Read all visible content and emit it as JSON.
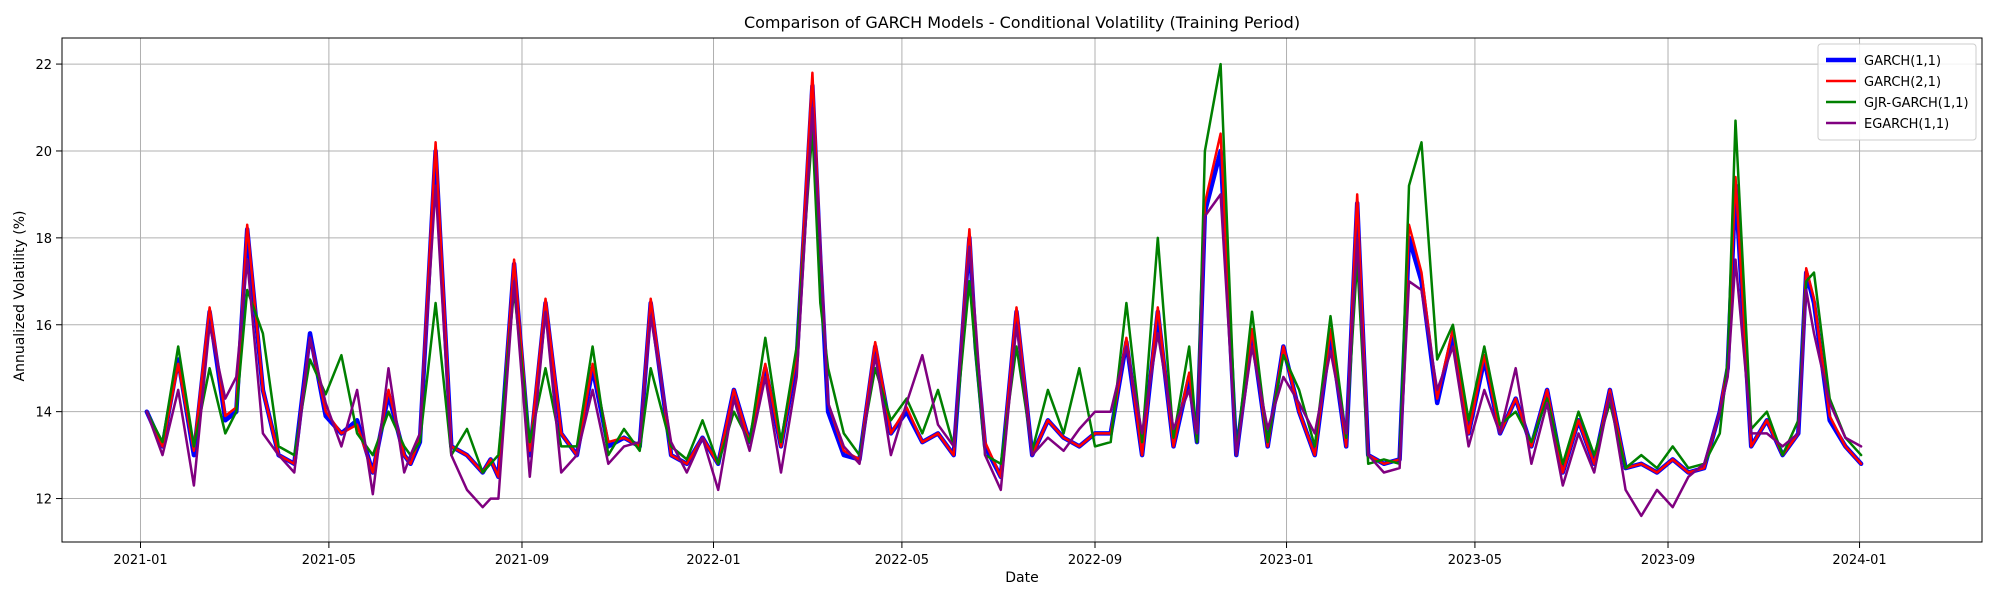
{
  "chart_data": {
    "type": "line",
    "title": "Comparison of GARCH Models - Conditional Volatility (Training Period)",
    "xlabel": "Date",
    "ylabel": "Annualized Volatility (%)",
    "x_axis": {
      "scale": "date",
      "range": [
        "2020-11-12",
        "2024-03-19"
      ],
      "ticks": [
        "2021-01",
        "2021-05",
        "2021-09",
        "2022-01",
        "2022-05",
        "2022-09",
        "2023-01",
        "2023-05",
        "2023-09",
        "2024-01"
      ],
      "tick_dates": [
        "2021-01-01",
        "2021-05-01",
        "2021-09-01",
        "2022-01-01",
        "2022-05-01",
        "2022-09-01",
        "2023-01-01",
        "2023-05-01",
        "2023-09-01",
        "2024-01-01"
      ]
    },
    "y_axis": {
      "range": [
        11.0,
        22.6
      ],
      "ticks": [
        12,
        14,
        16,
        18,
        20,
        22
      ]
    },
    "grid": true,
    "legend": {
      "position": "top-right"
    },
    "x": [
      "2021-01-05",
      "2021-01-15",
      "2021-01-25",
      "2021-02-04",
      "2021-02-14",
      "2021-02-24",
      "2021-03-03",
      "2021-03-10",
      "2021-03-20",
      "2021-03-30",
      "2021-04-09",
      "2021-04-19",
      "2021-04-29",
      "2021-05-09",
      "2021-05-19",
      "2021-05-29",
      "2021-06-08",
      "2021-06-18",
      "2021-06-22",
      "2021-06-28",
      "2021-07-08",
      "2021-07-18",
      "2021-07-28",
      "2021-08-07",
      "2021-08-12",
      "2021-08-17",
      "2021-08-27",
      "2021-09-06",
      "2021-09-16",
      "2021-09-26",
      "2021-10-06",
      "2021-10-16",
      "2021-10-26",
      "2021-11-05",
      "2021-11-15",
      "2021-11-22",
      "2021-12-05",
      "2021-12-15",
      "2021-12-25",
      "2022-01-04",
      "2022-01-14",
      "2022-01-24",
      "2022-02-03",
      "2022-02-13",
      "2022-02-23",
      "2022-03-05",
      "2022-03-10",
      "2022-03-15",
      "2022-03-25",
      "2022-04-04",
      "2022-04-14",
      "2022-04-24",
      "2022-05-04",
      "2022-05-14",
      "2022-05-24",
      "2022-06-03",
      "2022-06-13",
      "2022-06-17",
      "2022-06-23",
      "2022-07-03",
      "2022-07-13",
      "2022-07-23",
      "2022-08-02",
      "2022-08-12",
      "2022-08-22",
      "2022-09-01",
      "2022-09-11",
      "2022-09-21",
      "2022-10-01",
      "2022-10-11",
      "2022-10-21",
      "2022-10-31",
      "2022-11-05",
      "2022-11-10",
      "2022-11-20",
      "2022-11-30",
      "2022-12-10",
      "2022-12-20",
      "2022-12-30",
      "2023-01-09",
      "2023-01-19",
      "2023-01-29",
      "2023-02-08",
      "2023-02-15",
      "2023-02-22",
      "2023-03-04",
      "2023-03-14",
      "2023-03-20",
      "2023-03-28",
      "2023-04-07",
      "2023-04-17",
      "2023-04-27",
      "2023-05-07",
      "2023-05-17",
      "2023-05-27",
      "2023-06-06",
      "2023-06-16",
      "2023-06-26",
      "2023-07-06",
      "2023-07-16",
      "2023-07-26",
      "2023-08-05",
      "2023-08-15",
      "2023-08-25",
      "2023-09-04",
      "2023-09-14",
      "2023-09-24",
      "2023-10-04",
      "2023-10-09",
      "2023-10-14",
      "2023-10-24",
      "2023-11-03",
      "2023-11-13",
      "2023-11-23",
      "2023-11-28",
      "2023-12-03",
      "2023-12-13",
      "2023-12-23",
      "2024-01-02"
    ],
    "series": [
      {
        "name": "GARCH(1,1)",
        "color": "#0000ff",
        "width": 4.5,
        "values": [
          14.0,
          13.2,
          15.2,
          13.0,
          16.3,
          13.8,
          14.0,
          18.2,
          14.5,
          13.0,
          12.8,
          15.8,
          13.9,
          13.5,
          13.8,
          12.6,
          14.4,
          13.0,
          12.8,
          13.3,
          20.0,
          13.2,
          13.0,
          12.6,
          12.9,
          12.5,
          17.4,
          13.0,
          16.5,
          13.5,
          13.0,
          15.0,
          13.2,
          13.4,
          13.2,
          16.5,
          13.0,
          12.8,
          13.4,
          12.8,
          14.5,
          13.3,
          15.0,
          13.2,
          15.2,
          21.5,
          17.5,
          14.0,
          13.0,
          12.9,
          15.5,
          13.5,
          14.0,
          13.3,
          13.5,
          13.0,
          18.0,
          15.5,
          13.2,
          12.5,
          16.3,
          13.0,
          13.8,
          13.4,
          13.2,
          13.5,
          13.5,
          15.6,
          13.0,
          16.3,
          13.2,
          14.8,
          13.3,
          18.6,
          20.0,
          13.0,
          15.8,
          13.2,
          15.5,
          14.0,
          13.0,
          15.8,
          13.2,
          18.8,
          13.0,
          12.8,
          12.9,
          18.0,
          17.0,
          14.2,
          15.8,
          13.5,
          15.2,
          13.5,
          14.3,
          13.2,
          14.5,
          12.6,
          13.8,
          12.8,
          14.5,
          12.7,
          12.8,
          12.6,
          12.9,
          12.6,
          12.7,
          14.0,
          15.0,
          19.2,
          13.2,
          13.8,
          13.0,
          13.5,
          17.2,
          16.5,
          13.8,
          13.2,
          12.8
        ]
      },
      {
        "name": "GARCH(2,1)",
        "color": "#ff0000",
        "width": 2.5,
        "values": [
          14.0,
          13.2,
          15.1,
          13.1,
          16.4,
          13.9,
          14.1,
          18.3,
          14.5,
          13.0,
          12.8,
          15.7,
          14.0,
          13.5,
          13.7,
          12.6,
          14.5,
          13.0,
          12.8,
          13.4,
          20.2,
          13.2,
          13.0,
          12.6,
          12.9,
          12.5,
          17.5,
          13.1,
          16.6,
          13.5,
          13.0,
          15.1,
          13.3,
          13.4,
          13.2,
          16.6,
          13.0,
          12.8,
          13.4,
          12.8,
          14.5,
          13.3,
          15.1,
          13.2,
          15.3,
          21.8,
          17.8,
          14.2,
          13.1,
          12.9,
          15.6,
          13.5,
          14.1,
          13.3,
          13.5,
          13.0,
          18.2,
          15.7,
          13.3,
          12.5,
          16.4,
          13.0,
          13.8,
          13.4,
          13.2,
          13.5,
          13.5,
          15.7,
          13.0,
          16.4,
          13.2,
          14.9,
          13.3,
          18.8,
          20.4,
          13.0,
          15.9,
          13.2,
          15.5,
          14.0,
          13.0,
          15.9,
          13.2,
          19.0,
          13.0,
          12.8,
          12.9,
          18.3,
          17.2,
          14.3,
          15.9,
          13.5,
          15.3,
          13.5,
          14.3,
          13.2,
          14.5,
          12.6,
          13.8,
          12.8,
          14.5,
          12.7,
          12.8,
          12.6,
          12.9,
          12.6,
          12.7,
          14.0,
          15.1,
          19.4,
          13.2,
          13.8,
          13.0,
          13.5,
          17.3,
          16.6,
          13.9,
          13.2,
          12.8
        ]
      },
      {
        "name": "GJR-GARCH(1,1)",
        "color": "#008000",
        "width": 2.5,
        "values": [
          14.0,
          13.3,
          15.5,
          13.2,
          15.0,
          13.5,
          14.0,
          16.8,
          15.8,
          13.2,
          13.0,
          15.2,
          14.4,
          15.3,
          13.5,
          13.0,
          14.0,
          13.2,
          13.0,
          13.3,
          16.5,
          13.0,
          13.6,
          12.6,
          12.8,
          13.0,
          16.8,
          13.3,
          15.0,
          13.2,
          13.2,
          15.5,
          13.0,
          13.6,
          13.1,
          15.0,
          13.2,
          12.9,
          13.8,
          12.8,
          14.0,
          13.3,
          15.7,
          13.3,
          15.5,
          20.5,
          16.5,
          15.0,
          13.5,
          13.0,
          15.0,
          13.8,
          14.3,
          13.5,
          14.5,
          13.2,
          17.0,
          15.3,
          13.0,
          12.8,
          15.5,
          13.1,
          14.5,
          13.5,
          15.0,
          13.2,
          13.3,
          16.5,
          13.3,
          18.0,
          13.4,
          15.5,
          13.3,
          20.0,
          22.0,
          13.0,
          16.3,
          13.3,
          15.3,
          14.5,
          13.2,
          16.2,
          13.4,
          17.5,
          12.8,
          12.9,
          12.8,
          19.2,
          20.2,
          15.2,
          16.0,
          13.8,
          15.5,
          13.7,
          14.0,
          13.3,
          14.3,
          12.8,
          14.0,
          13.0,
          14.2,
          12.7,
          13.0,
          12.7,
          13.2,
          12.7,
          12.8,
          13.5,
          15.2,
          20.7,
          13.6,
          14.0,
          13.0,
          13.8,
          17.0,
          17.2,
          14.3,
          13.4,
          13.0
        ]
      },
      {
        "name": "EGARCH(1,1)",
        "color": "#800080",
        "width": 2.5,
        "values": [
          14.0,
          13.0,
          14.5,
          12.3,
          16.0,
          14.3,
          14.8,
          17.5,
          13.5,
          13.0,
          12.6,
          15.7,
          14.2,
          13.2,
          14.5,
          12.1,
          15.0,
          12.6,
          13.0,
          13.5,
          19.2,
          13.0,
          12.2,
          11.8,
          12.0,
          12.0,
          17.0,
          12.5,
          16.3,
          12.6,
          13.0,
          14.5,
          12.8,
          13.2,
          13.3,
          16.2,
          13.3,
          12.6,
          13.4,
          12.2,
          14.3,
          13.1,
          14.8,
          12.6,
          14.8,
          21.0,
          17.8,
          14.2,
          13.2,
          12.8,
          15.3,
          13.0,
          14.2,
          15.3,
          13.7,
          13.2,
          17.8,
          16.0,
          13.0,
          12.2,
          16.0,
          13.0,
          13.4,
          13.1,
          13.6,
          14.0,
          14.0,
          15.5,
          13.5,
          15.8,
          13.6,
          14.5,
          13.5,
          18.5,
          19.0,
          13.0,
          15.5,
          13.6,
          14.8,
          14.2,
          13.5,
          15.4,
          13.5,
          18.0,
          13.0,
          12.6,
          12.7,
          17.0,
          16.8,
          14.5,
          15.5,
          13.2,
          14.5,
          13.5,
          15.0,
          12.8,
          14.2,
          12.3,
          13.5,
          12.6,
          14.4,
          12.2,
          11.6,
          12.2,
          11.8,
          12.5,
          12.8,
          14.0,
          14.8,
          17.5,
          13.5,
          13.5,
          13.2,
          13.5,
          16.8,
          15.8,
          14.2,
          13.4,
          13.2
        ]
      }
    ]
  }
}
